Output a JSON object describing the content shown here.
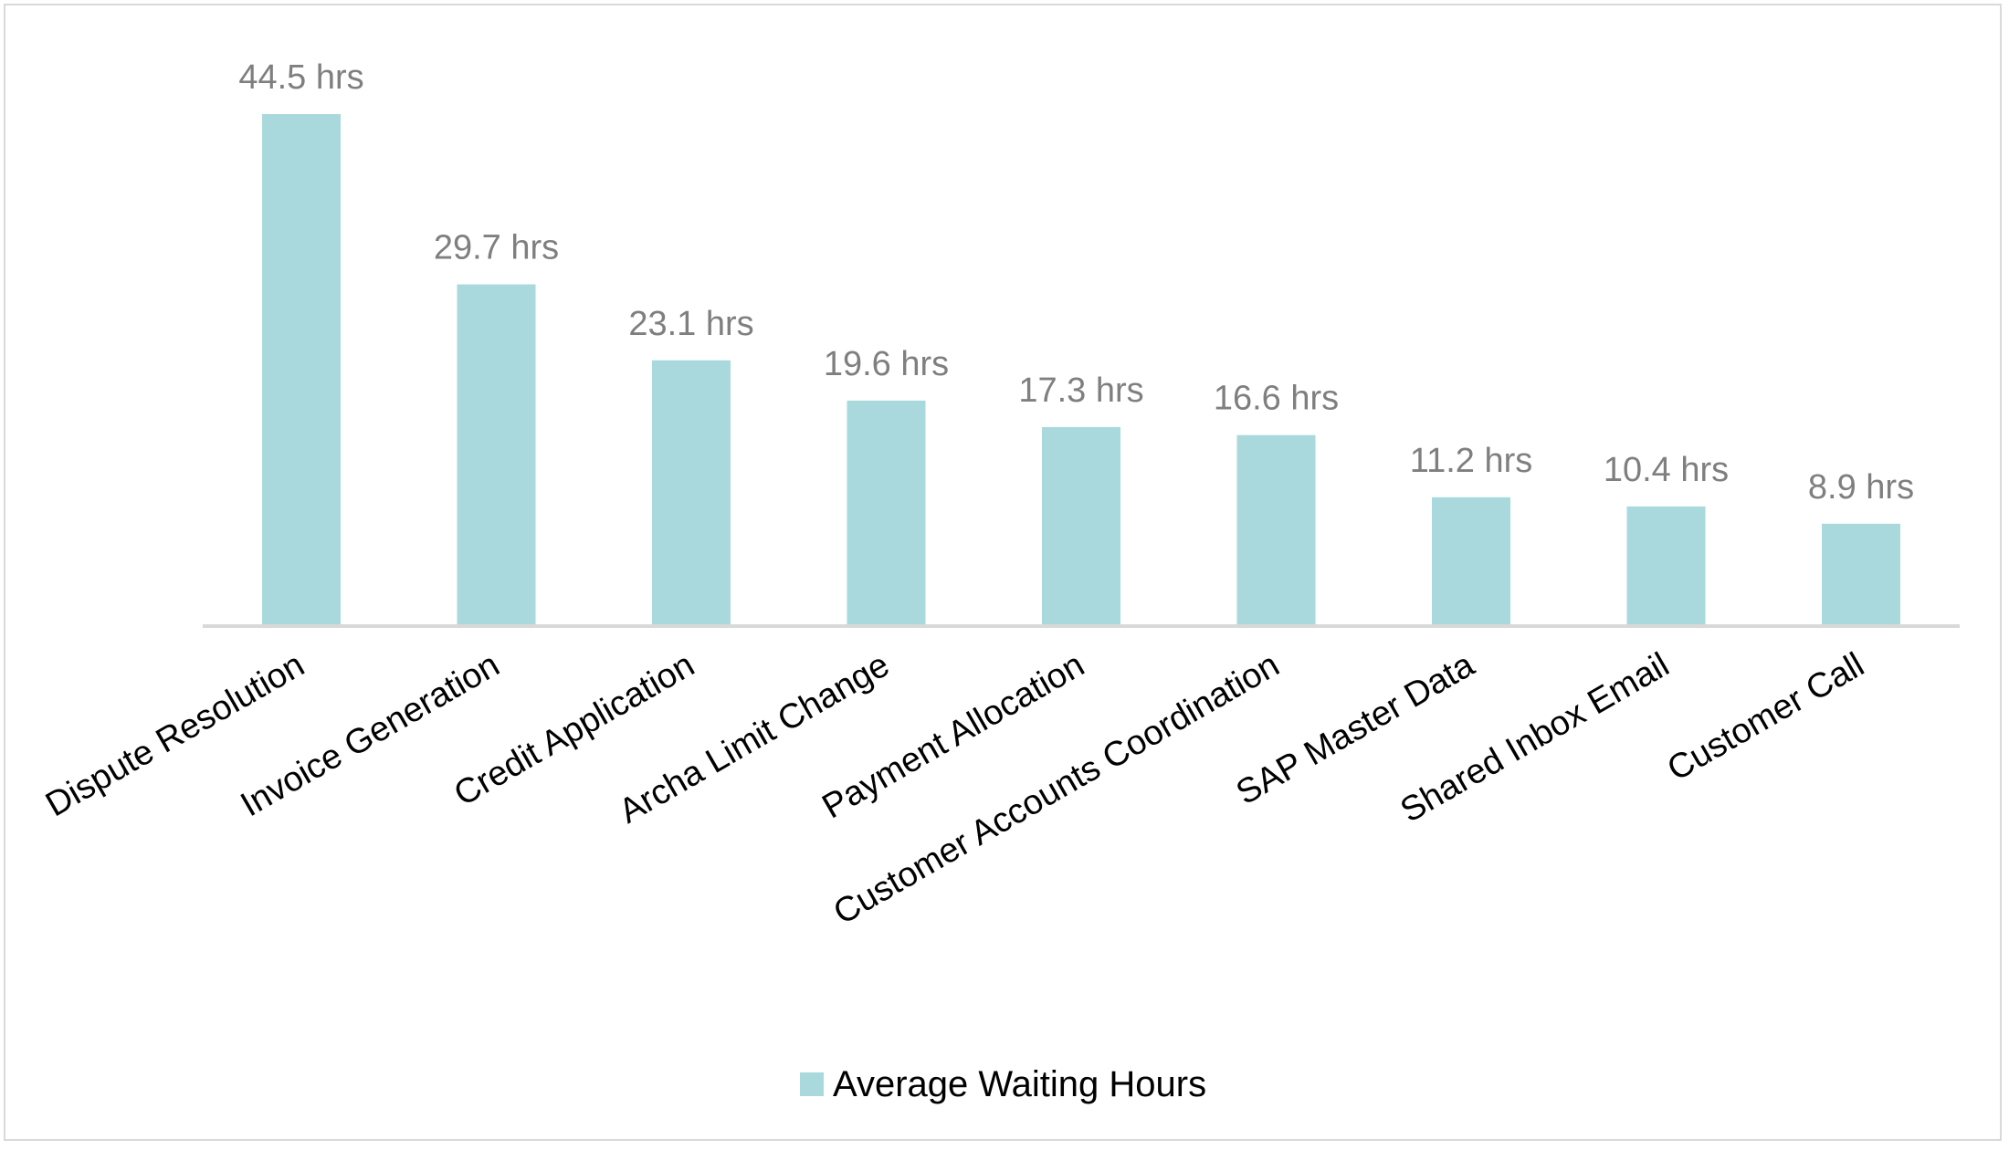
{
  "chart_data": {
    "type": "bar",
    "categories": [
      "Dispute Resolution",
      "Invoice Generation",
      "Credit Application",
      "Archa Limit Change",
      "Payment Allocation",
      "Customer Accounts Coordination",
      "SAP Master Data",
      "Shared Inbox Email",
      "Customer Call"
    ],
    "series": [
      {
        "name": "Average Waiting Hours",
        "values": [
          44.5,
          29.7,
          23.1,
          19.6,
          17.3,
          16.6,
          11.2,
          10.4,
          8.9
        ],
        "data_labels": [
          "44.5 hrs",
          "29.7 hrs",
          "23.1 hrs",
          "19.6 hrs",
          "17.3 hrs",
          "16.6 hrs",
          "11.2 hrs",
          "10.4 hrs",
          "8.9 hrs"
        ],
        "color": "#a9d9dc"
      }
    ],
    "title": "",
    "xlabel": "",
    "ylabel": "",
    "ylim": [
      0,
      50
    ],
    "grid": false,
    "legend_position": "bottom",
    "axis_color": "#d9d9d9",
    "data_label_color": "#7f7f7f"
  }
}
